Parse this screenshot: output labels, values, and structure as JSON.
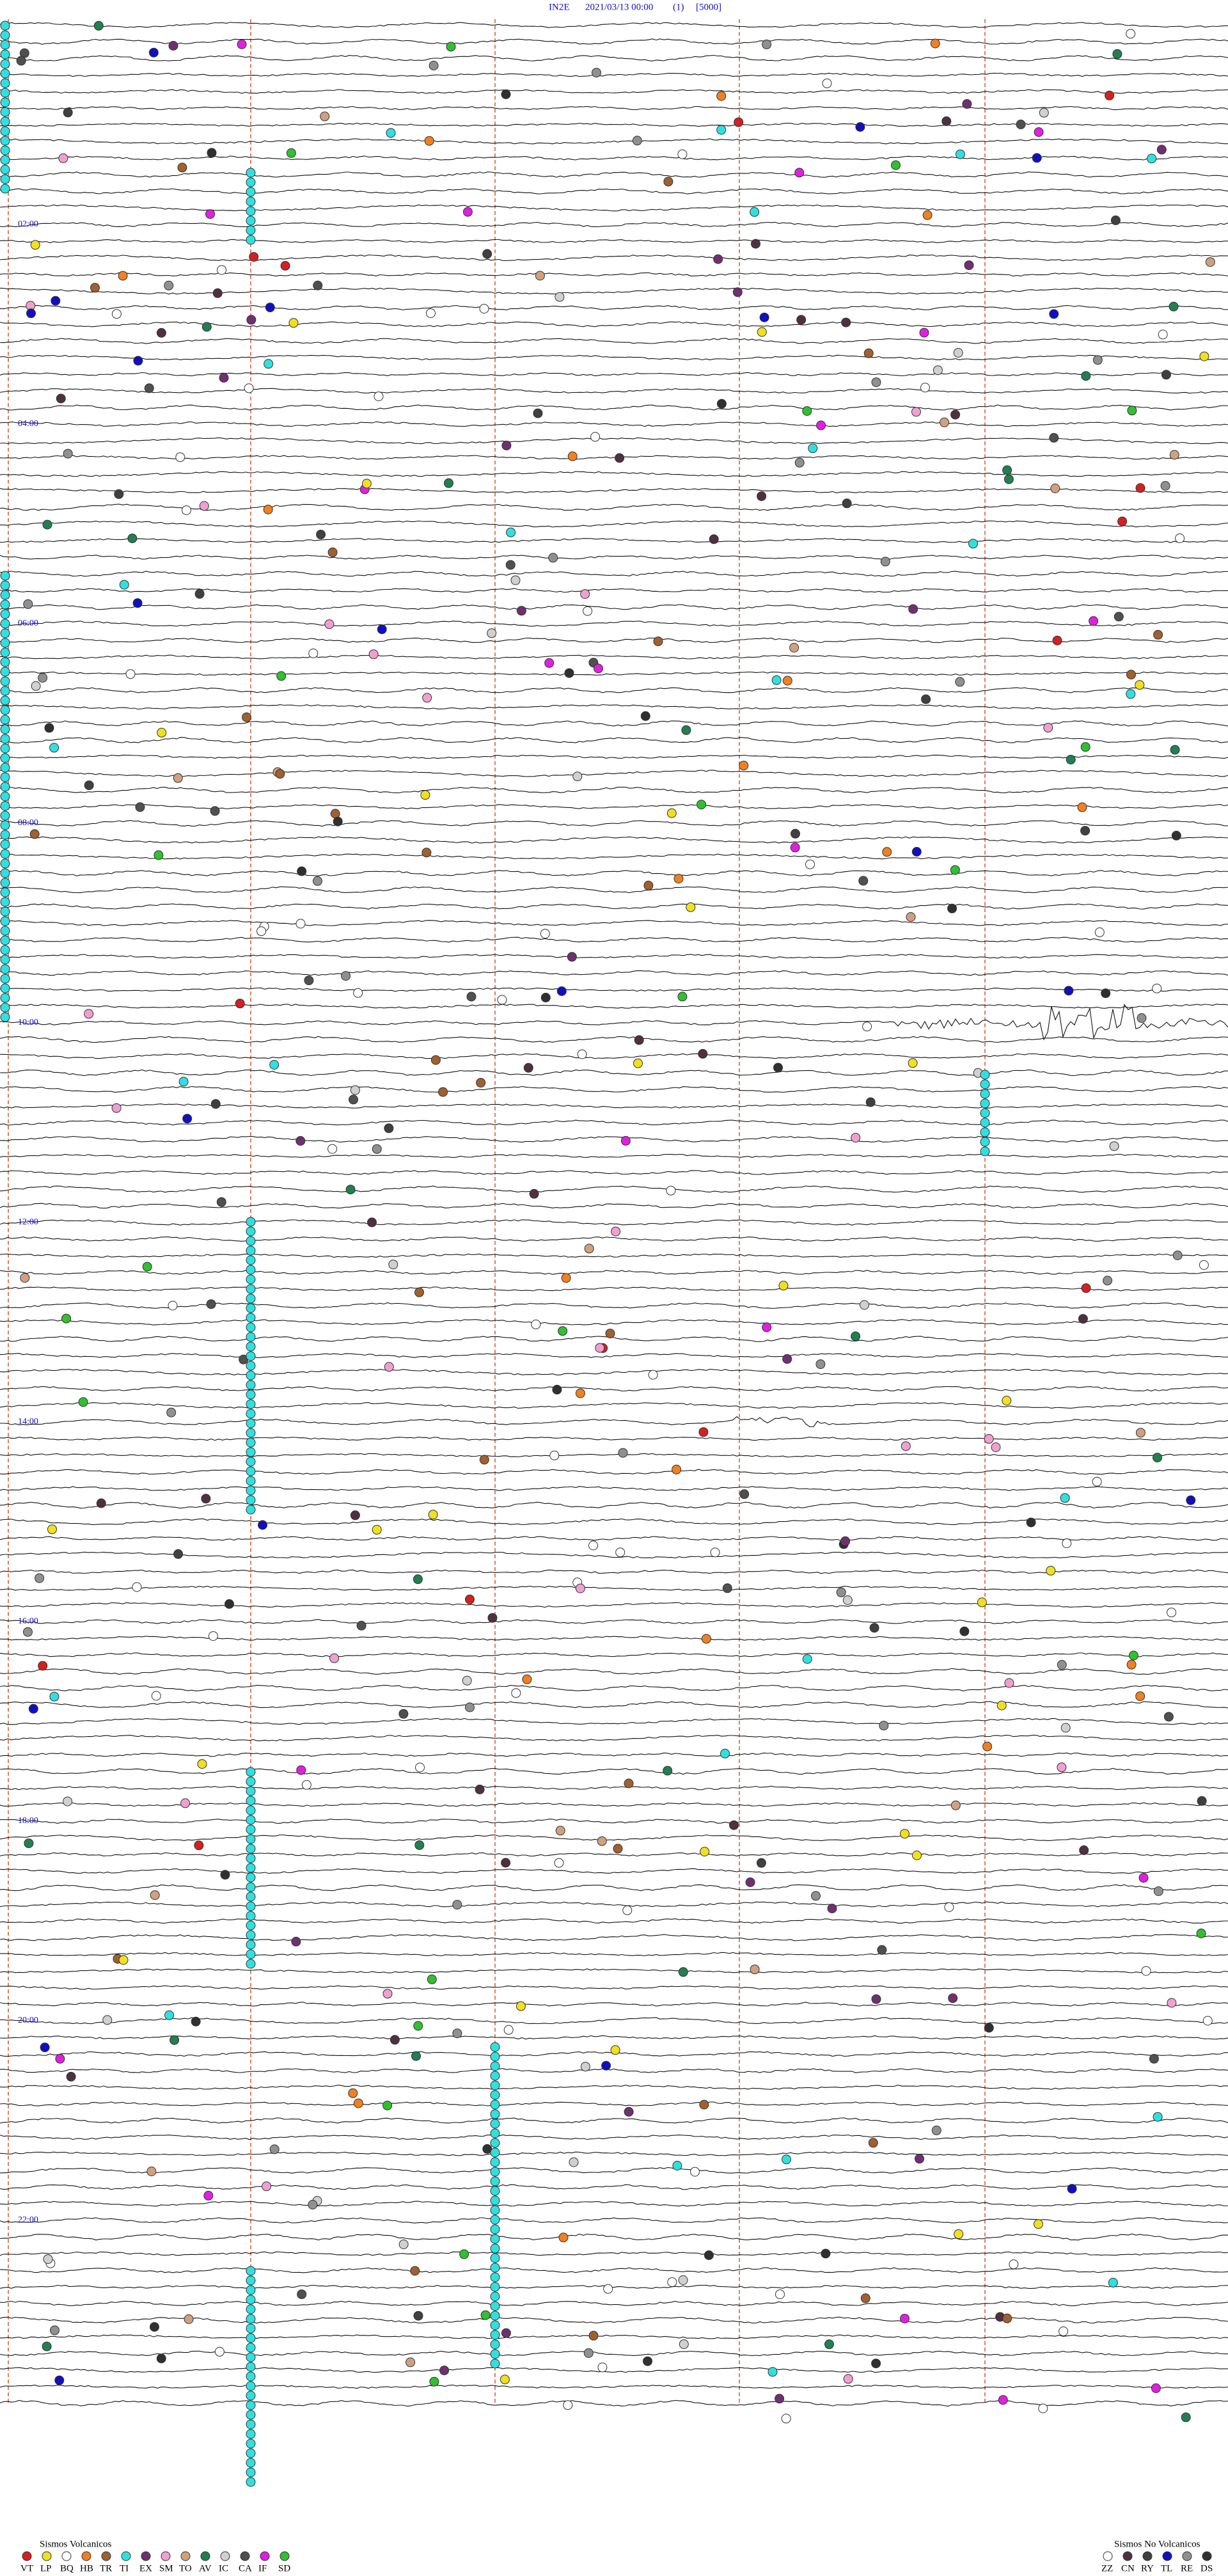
{
  "header": {
    "station": "IN2E",
    "datetime": "2021/03/13 00:00",
    "channel": "(1)",
    "scale": "[5000]"
  },
  "hour_labels": [
    "02:00",
    "04:00",
    "06:00",
    "08:00",
    "10:00",
    "12:00",
    "14:00",
    "16:00",
    "18:00",
    "20:00",
    "22:00"
  ],
  "legend_volcanic": {
    "title": "Sismos Volcanicos",
    "items": [
      {
        "code": "VT",
        "color": "#d42020"
      },
      {
        "code": "LP",
        "color": "#f0e020"
      },
      {
        "code": "BQ",
        "color": "#ffffff"
      },
      {
        "code": "HB",
        "color": "#f08020"
      },
      {
        "code": "TR",
        "color": "#a06030"
      },
      {
        "code": "TI",
        "color": "#30e0e0"
      },
      {
        "code": "EX",
        "color": "#703070"
      },
      {
        "code": "SM",
        "color": "#f0a0d0"
      },
      {
        "code": "TO",
        "color": "#d0a080"
      },
      {
        "code": "AV",
        "color": "#208050"
      },
      {
        "code": "IC",
        "color": "#d0d0d0"
      },
      {
        "code": "CA",
        "color": "#505050"
      },
      {
        "code": "IF",
        "color": "#e020e0"
      },
      {
        "code": "SD",
        "color": "#30c030"
      }
    ]
  },
  "legend_non_volcanic": {
    "title": "Sismos No Volcanicos",
    "items": [
      {
        "code": "ZZ",
        "color": "#ffffff"
      },
      {
        "code": "CN",
        "color": "#503040"
      },
      {
        "code": "RY",
        "color": "#404040"
      },
      {
        "code": "TL",
        "color": "#1010c0"
      },
      {
        "code": "RE",
        "color": "#909090"
      },
      {
        "code": "DS",
        "color": "#303030"
      }
    ]
  }
}
